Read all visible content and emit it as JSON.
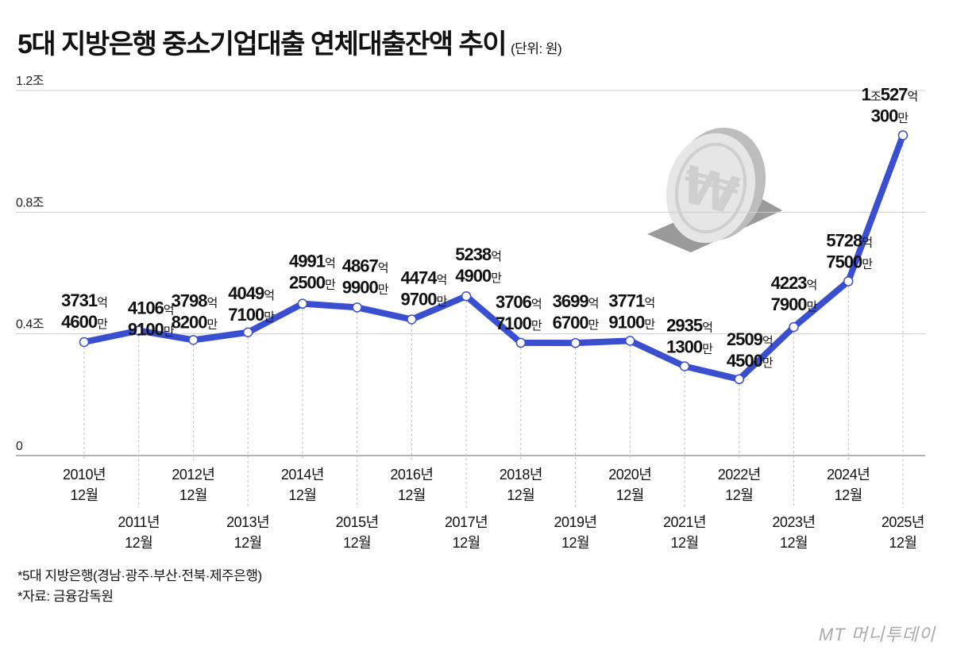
{
  "title": "5대 지방은행 중소기업대출 연체대출잔액 추이",
  "unit": "(단위: 원)",
  "footnotes": [
    "*5대 지방은행(경남·광주·부산·전북·제주은행)",
    "*자료: 금융감독원"
  ],
  "logo": "MT 머니투데이",
  "colors": {
    "line": "#3a4fd0",
    "grid": "#cccccc",
    "marker_fill": "#ffffff"
  },
  "chart_data": {
    "type": "line",
    "title": "5대 지방은행 중소기업대출 연체대출잔액 추이",
    "unit_label": "(단위: 원)",
    "ylim": [
      0,
      1.2
    ],
    "y_unit": "조",
    "yticks": [
      {
        "value": 0,
        "label": "0"
      },
      {
        "value": 0.4,
        "label": "0.4조"
      },
      {
        "value": 0.8,
        "label": "0.8조"
      },
      {
        "value": 1.2,
        "label": "1.2조"
      }
    ],
    "grid": true,
    "categories": [
      [
        "2010년",
        "12월"
      ],
      [
        "2011년",
        "12월"
      ],
      [
        "2012년",
        "12월"
      ],
      [
        "2013년",
        "12월"
      ],
      [
        "2014년",
        "12월"
      ],
      [
        "2015년",
        "12월"
      ],
      [
        "2016년",
        "12월"
      ],
      [
        "2017년",
        "12월"
      ],
      [
        "2018년",
        "12월"
      ],
      [
        "2019년",
        "12월"
      ],
      [
        "2020년",
        "12월"
      ],
      [
        "2021년",
        "12월"
      ],
      [
        "2022년",
        "12월"
      ],
      [
        "2023년",
        "12월"
      ],
      [
        "2024년",
        "12월"
      ],
      [
        "2025년",
        "12월"
      ]
    ],
    "values_eok": [
      3731.46,
      4106.91,
      3798.82,
      4049.71,
      4991.25,
      4867.99,
      4474.97,
      5238.49,
      3706.71,
      3699.67,
      3771.91,
      2935.13,
      2509.45,
      4223.79,
      5728.75,
      10527.03
    ],
    "data_labels": [
      [
        [
          "3731",
          "억"
        ],
        [
          "4600",
          "만"
        ]
      ],
      [
        [
          "4106",
          "억"
        ],
        [
          "9100",
          "만"
        ]
      ],
      [
        [
          "3798",
          "억"
        ],
        [
          "8200",
          "만"
        ]
      ],
      [
        [
          "4049",
          "억"
        ],
        [
          "7100",
          "만"
        ]
      ],
      [
        [
          "4991",
          "억"
        ],
        [
          "2500",
          "만"
        ]
      ],
      [
        [
          "4867",
          "억"
        ],
        [
          "9900",
          "만"
        ]
      ],
      [
        [
          "4474",
          "억"
        ],
        [
          "9700",
          "만"
        ]
      ],
      [
        [
          "5238",
          "억"
        ],
        [
          "4900",
          "만"
        ]
      ],
      [
        [
          "3706",
          "억"
        ],
        [
          "7100",
          "만"
        ]
      ],
      [
        [
          "3699",
          "억"
        ],
        [
          "6700",
          "만"
        ]
      ],
      [
        [
          "3771",
          "억"
        ],
        [
          "9100",
          "만"
        ]
      ],
      [
        [
          "2935",
          "억"
        ],
        [
          "1300",
          "만"
        ]
      ],
      [
        [
          "2509",
          "억"
        ],
        [
          "4500",
          "만"
        ]
      ],
      [
        [
          "4223",
          "억"
        ],
        [
          "7900",
          "만"
        ]
      ],
      [
        [
          "5728",
          "억"
        ],
        [
          "7500",
          "만"
        ]
      ],
      [
        [
          "1",
          "조",
          "527",
          "억"
        ],
        [
          "300",
          "만"
        ]
      ]
    ]
  }
}
